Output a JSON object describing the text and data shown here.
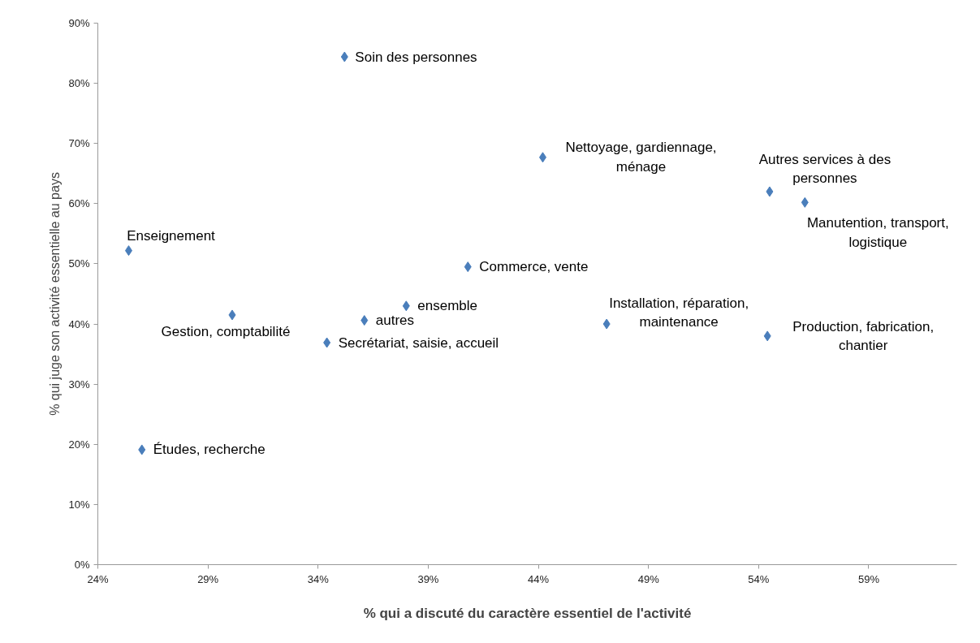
{
  "chart_data": {
    "type": "scatter",
    "xlabel": "% qui a discuté du caractère essentiel de l'activité",
    "ylabel": "% qui juge son activité essentielle au pays",
    "x": [
      35.2,
      44.2,
      54.5,
      56.1,
      25.4,
      40.8,
      38.0,
      30.1,
      36.1,
      47.1,
      34.4,
      54.4,
      26.0
    ],
    "values": [
      84.4,
      67.7,
      62.0,
      60.2,
      52.2,
      49.5,
      43.0,
      41.5,
      40.6,
      40.0,
      36.9,
      38.0,
      19.1
    ],
    "color": "#4a7ebb",
    "marker": "diamond",
    "annotations": [
      {
        "text": "Soin des personnes",
        "x": 35.2,
        "y": 84.4
      },
      {
        "text": "Nettoyage, gardiennage, ménage",
        "x": 44.2,
        "y": 67.7
      },
      {
        "text": "Autres services à des personnes",
        "x": 54.5,
        "y": 62.0
      },
      {
        "text": "Manutention, transport, logistique",
        "x": 56.1,
        "y": 60.2
      },
      {
        "text": "Enseignement",
        "x": 25.4,
        "y": 52.2
      },
      {
        "text": "Commerce, vente",
        "x": 40.8,
        "y": 49.5
      },
      {
        "text": "ensemble",
        "x": 38.0,
        "y": 43.0
      },
      {
        "text": "Gestion, comptabilité",
        "x": 30.1,
        "y": 41.5
      },
      {
        "text": "autres",
        "x": 36.1,
        "y": 40.6
      },
      {
        "text": "Installation, réparation, maintenance",
        "x": 47.1,
        "y": 40.0
      },
      {
        "text": "Secrétariat, saisie, accueil",
        "x": 34.4,
        "y": 36.9
      },
      {
        "text": "Production, fabrication, chantier",
        "x": 54.4,
        "y": 38.0
      },
      {
        "text": "Études, recherche",
        "x": 26.0,
        "y": 19.1
      }
    ],
    "xlim": [
      24,
      63
    ],
    "ylim": [
      0,
      90
    ],
    "xticks": [
      {
        "value": 24,
        "label": "24%"
      },
      {
        "value": 29,
        "label": "29%"
      },
      {
        "value": 34,
        "label": "34%"
      },
      {
        "value": 39,
        "label": "39%"
      },
      {
        "value": 44,
        "label": "44%"
      },
      {
        "value": 49,
        "label": "49%"
      },
      {
        "value": 54,
        "label": "54%"
      },
      {
        "value": 59,
        "label": "59%"
      }
    ],
    "yticks": [
      {
        "value": 0,
        "label": "0%"
      },
      {
        "value": 10,
        "label": "10%"
      },
      {
        "value": 20,
        "label": "20%"
      },
      {
        "value": 30,
        "label": "30%"
      },
      {
        "value": 40,
        "label": "40%"
      },
      {
        "value": 50,
        "label": "50%"
      },
      {
        "value": 60,
        "label": "60%"
      },
      {
        "value": 70,
        "label": "70%"
      },
      {
        "value": 80,
        "label": "80%"
      },
      {
        "value": 90,
        "label": "90%"
      }
    ],
    "grid": false
  }
}
